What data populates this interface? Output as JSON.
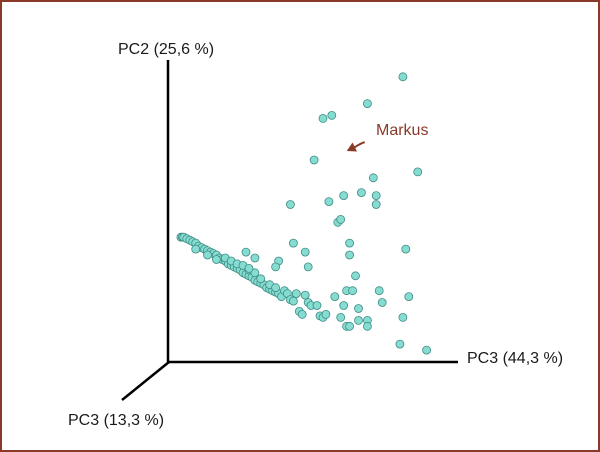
{
  "chart_data": {
    "type": "scatter",
    "projection": "3d-pca",
    "axes": {
      "y_label": "PC2 (25,6 %)",
      "x_label": "PC3 (44,3 %)",
      "z_label": "PC3 (13,3 %)"
    },
    "xlim": [
      0,
      100
    ],
    "ylim": [
      0,
      100
    ],
    "grid": false,
    "legend": "none",
    "point_color": "#86dcd0",
    "point_stroke": "#3d8c84",
    "axis_color": "#000000",
    "annotation": {
      "text": "Markus",
      "color": "#8b3a2a",
      "target_x": 57,
      "target_y": 68
    },
    "points": [
      [
        3,
        40
      ],
      [
        3.5,
        40
      ],
      [
        4,
        40
      ],
      [
        5,
        39.5
      ],
      [
        6,
        39
      ],
      [
        7,
        38.5
      ],
      [
        8,
        38
      ],
      [
        9,
        37
      ],
      [
        10,
        36.5
      ],
      [
        11,
        36
      ],
      [
        12,
        35.5
      ],
      [
        13,
        35
      ],
      [
        14,
        34.5
      ],
      [
        15,
        34
      ],
      [
        16,
        33
      ],
      [
        17,
        32.5
      ],
      [
        18,
        32
      ],
      [
        19,
        31
      ],
      [
        20,
        30.5
      ],
      [
        21,
        30
      ],
      [
        22,
        29.5
      ],
      [
        23,
        29
      ],
      [
        24,
        28
      ],
      [
        25,
        27.5
      ],
      [
        26,
        27
      ],
      [
        27,
        26.5
      ],
      [
        28,
        25.5
      ],
      [
        29,
        25
      ],
      [
        30,
        24.5
      ],
      [
        31,
        24
      ],
      [
        32,
        23
      ],
      [
        33,
        22.5
      ],
      [
        34,
        22
      ],
      [
        35,
        21.5
      ],
      [
        36,
        21
      ],
      [
        8,
        36
      ],
      [
        12,
        34
      ],
      [
        15,
        32.5
      ],
      [
        18,
        33
      ],
      [
        20,
        32
      ],
      [
        22,
        31
      ],
      [
        24,
        30.5
      ],
      [
        26,
        29
      ],
      [
        28,
        28
      ],
      [
        30,
        26
      ],
      [
        33,
        24
      ],
      [
        35,
        23
      ],
      [
        37,
        20
      ],
      [
        38,
        22
      ],
      [
        39,
        21
      ],
      [
        40,
        19
      ],
      [
        41,
        18.5
      ],
      [
        42,
        21
      ],
      [
        43,
        15
      ],
      [
        44,
        14
      ],
      [
        46,
        18
      ],
      [
        45,
        20.5
      ],
      [
        47,
        17
      ],
      [
        49,
        17
      ],
      [
        50,
        13.5
      ],
      [
        51,
        13
      ],
      [
        52,
        14
      ],
      [
        58,
        17
      ],
      [
        57,
        13
      ],
      [
        59,
        10
      ],
      [
        60,
        10
      ],
      [
        63,
        12
      ],
      [
        66,
        12
      ],
      [
        66,
        10
      ],
      [
        25,
        35
      ],
      [
        28,
        33
      ],
      [
        26,
        29.5
      ],
      [
        36,
        32
      ],
      [
        35,
        30
      ],
      [
        45,
        35
      ],
      [
        46,
        30
      ],
      [
        55,
        20
      ],
      [
        59,
        22
      ],
      [
        63,
        16
      ],
      [
        41,
        38
      ],
      [
        40,
        51
      ],
      [
        56,
        45
      ],
      [
        53,
        52
      ],
      [
        57,
        46
      ],
      [
        58,
        54
      ],
      [
        60,
        38
      ],
      [
        60,
        34
      ],
      [
        62,
        27
      ],
      [
        61,
        22
      ],
      [
        64,
        55
      ],
      [
        68,
        60
      ],
      [
        69,
        54
      ],
      [
        69,
        51
      ],
      [
        70,
        22
      ],
      [
        71,
        18
      ],
      [
        79,
        36
      ],
      [
        78,
        13
      ],
      [
        80,
        20
      ],
      [
        83,
        62
      ],
      [
        51,
        80
      ],
      [
        54,
        81
      ],
      [
        66,
        85
      ],
      [
        78,
        94
      ],
      [
        48,
        66
      ],
      [
        86,
        2
      ],
      [
        77,
        4
      ]
    ]
  }
}
